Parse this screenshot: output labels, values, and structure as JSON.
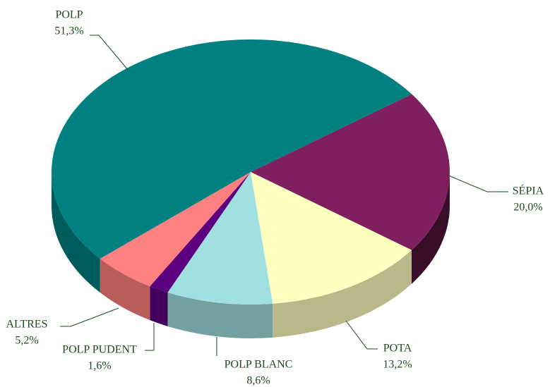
{
  "chart_data": {
    "type": "pie",
    "categories": [
      "SÉPIA",
      "POTA",
      "POLP BLANC",
      "POLP PUDENT",
      "ALTRES",
      "POLP"
    ],
    "values": [
      20.0,
      13.2,
      8.6,
      1.6,
      5.2,
      51.3
    ],
    "value_labels": [
      "20,0%",
      "13,2%",
      "8,6%",
      "1,6%",
      "5,2%",
      "51,3%"
    ],
    "colors": [
      "#7f1f5f",
      "#ffffc0",
      "#a0e0e0",
      "#5c0080",
      "#ff8080",
      "#008080"
    ]
  }
}
